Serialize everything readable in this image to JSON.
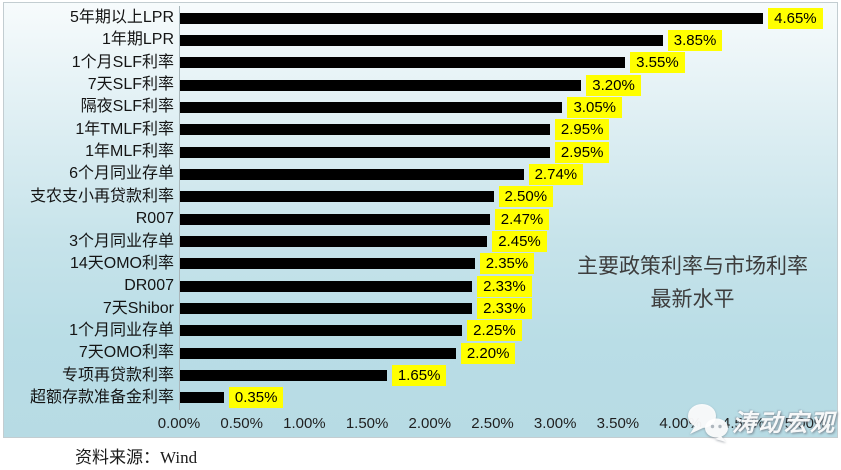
{
  "chart_data": {
    "type": "bar",
    "orientation": "horizontal",
    "title": "主要政策利率与市场利率最新水平",
    "categories": [
      "5年期以上LPR",
      "1年期LPR",
      "1个月SLF利率",
      "7天SLF利率",
      "隔夜SLF利率",
      "1年TMLF利率",
      "1年MLF利率",
      "6个月同业存单",
      "支农支小再贷款利率",
      "R007",
      "3个月同业存单",
      "14天OMO利率",
      "DR007",
      "7天Shibor",
      "1个月同业存单",
      "7天OMO利率",
      "专项再贷款利率",
      "超额存款准备金利率"
    ],
    "values": [
      4.65,
      3.85,
      3.55,
      3.2,
      3.05,
      2.95,
      2.95,
      2.74,
      2.5,
      2.47,
      2.45,
      2.35,
      2.33,
      2.33,
      2.25,
      2.2,
      1.65,
      0.35
    ],
    "value_labels": [
      "4.65%",
      "3.85%",
      "3.55%",
      "3.20%",
      "3.05%",
      "2.95%",
      "2.95%",
      "2.74%",
      "2.50%",
      "2.47%",
      "2.45%",
      "2.35%",
      "2.33%",
      "2.33%",
      "2.25%",
      "2.20%",
      "1.65%",
      "0.35%"
    ],
    "x_ticks": [
      "0.00%",
      "0.50%",
      "1.00%",
      "1.50%",
      "2.00%",
      "2.50%",
      "3.00%",
      "3.50%",
      "4.00%",
      "4.50%",
      "5.00%"
    ],
    "xlim": [
      0,
      5
    ],
    "grid": "off",
    "legend": "none",
    "bar_color": "#000000",
    "value_label_bg": "#ffff00",
    "value_label_color": "#000000"
  },
  "annotation": {
    "line1": "主要政策利率与市场利率",
    "line2": "最新水平"
  },
  "colors": {
    "background_top": "#f7fbfc",
    "background_bottom": "#b7dbe4",
    "bar": "#000000",
    "value_label_bg": "#ffff00"
  },
  "watermark": {
    "text": "涛动宏观",
    "icon": "wechat-icon"
  },
  "source": {
    "label": "资料来源：Wind"
  }
}
